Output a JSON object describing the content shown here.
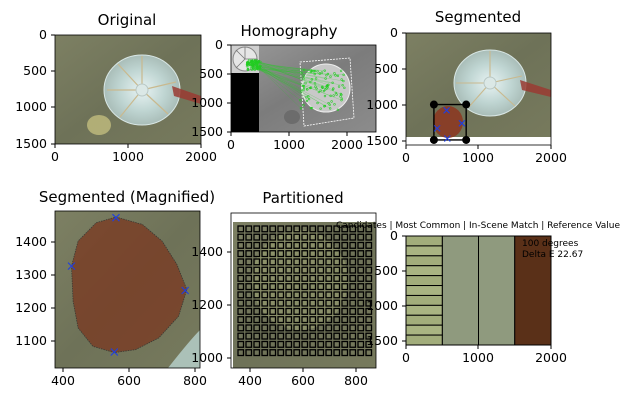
{
  "chart_data": [
    {
      "type": "image",
      "title": "Original",
      "xticks": [
        "0",
        "1000",
        "2000"
      ],
      "yticks": [
        "0",
        "500",
        "1000",
        "1500"
      ],
      "xlim": [
        0,
        2000
      ],
      "ylim": [
        1500,
        0
      ]
    },
    {
      "type": "image",
      "title": "Homography",
      "xticks": [
        "0",
        "1000",
        "2000"
      ],
      "yticks": [
        "0",
        "500",
        "1000",
        "1500"
      ],
      "xlim": [
        0,
        2500
      ],
      "ylim": [
        1500,
        0
      ],
      "marker_color": "#22cc22"
    },
    {
      "type": "image",
      "title": "Segmented",
      "xticks": [
        "0",
        "1000",
        "2000"
      ],
      "yticks": [
        "0",
        "500",
        "1000",
        "1500"
      ],
      "xlim": [
        0,
        2000
      ],
      "ylim": [
        1550,
        0
      ],
      "corner_points": [
        [
          385,
          990
        ],
        [
          830,
          990
        ],
        [
          385,
          1480
        ],
        [
          830,
          1480
        ]
      ],
      "x_markers": [
        [
          430,
          1320
        ],
        [
          560,
          1070
        ],
        [
          570,
          1460
        ],
        [
          770,
          1250
        ]
      ]
    },
    {
      "type": "image",
      "title": "Segmented (Magnified)",
      "xticks": [
        "400",
        "600",
        "800"
      ],
      "yticks": [
        "1100",
        "1200",
        "1300",
        "1400"
      ],
      "xlim": [
        375,
        815
      ],
      "ylim": [
        1020,
        1490
      ],
      "x_markers": [
        [
          425,
          1325
        ],
        [
          560,
          1470
        ],
        [
          555,
          1068
        ],
        [
          770,
          1252
        ]
      ],
      "region_color": "#7a3a22"
    },
    {
      "type": "image",
      "title": "Partitioned",
      "xticks": [
        "400",
        "600",
        "800"
      ],
      "yticks": [
        "1000",
        "1200",
        "1400"
      ],
      "xlim": [
        330,
        870
      ],
      "ylim": [
        1015,
        1495
      ],
      "grid_rows": 16,
      "grid_cols": 17
    },
    {
      "type": "bar",
      "title": "Candidates | Most Common | In-Scene Match | Reference Value",
      "xticks": [
        "0",
        "1000",
        "2000"
      ],
      "yticks": [
        "0",
        "500",
        "1000",
        "1500"
      ],
      "xlim": [
        0,
        2000
      ],
      "ylim": [
        1550,
        0
      ],
      "segments": [
        {
          "x0": 0,
          "x1": 500,
          "color": "#a5b07e"
        },
        {
          "x0": 500,
          "x1": 1000,
          "color": "#8f9a7e"
        },
        {
          "x0": 1000,
          "x1": 1500,
          "color": "#8f9a7e"
        },
        {
          "x0": 1500,
          "x1": 2000,
          "color": "#5a3018"
        }
      ],
      "candidate_stripes": 11,
      "annotation": [
        "100 degrees",
        "Delta E 22.67"
      ]
    }
  ]
}
